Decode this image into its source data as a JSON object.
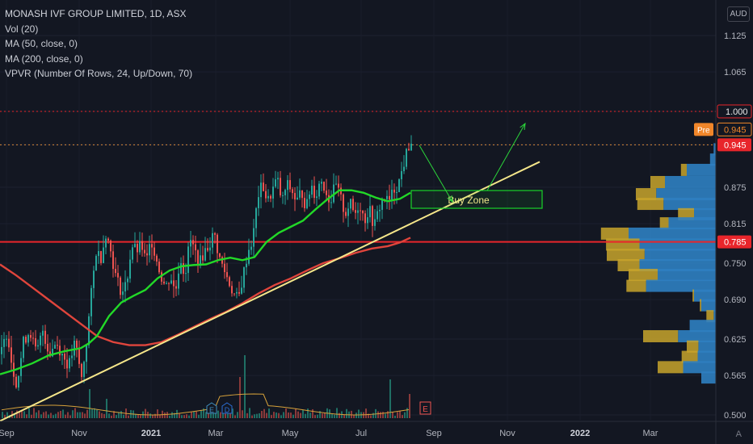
{
  "header": {
    "symbol_line": "MONASH IVF GROUP LIMITED, 1D, ASX",
    "indicators": [
      "Vol (20)",
      "MA (50, close, 0)",
      "MA (200, close, 0)",
      "VPVR (Number Of Rows, 24, Up/Down, 70)"
    ],
    "currency": "AUD",
    "auto_mark": "A"
  },
  "colors": {
    "background": "#131722",
    "up_candle": "#26a69a",
    "down_candle": "#ef5350",
    "ma50": "#22d928",
    "ma200": "#e0453c",
    "trendline": "#f5e68a",
    "horizontal_level": "#e8252b",
    "buy_zone_border": "#18d32a",
    "arrows": "#2bd63a",
    "vp_up": "#2f7fc1",
    "vp_down": "#c8a42c"
  },
  "chart_data": {
    "type": "candlestick",
    "y_axis": {
      "ticks": [
        "1.125",
        "1.065",
        "1.000",
        "0.945",
        "0.875",
        "0.815",
        "0.785",
        "0.750",
        "0.690",
        "0.625",
        "0.565",
        "0.500"
      ],
      "range": [
        0.495,
        1.16
      ]
    },
    "x_axis": {
      "ticks": [
        {
          "label": "Sep",
          "bold": false
        },
        {
          "label": "Nov",
          "bold": false
        },
        {
          "label": "2021",
          "bold": true
        },
        {
          "label": "Mar",
          "bold": false
        },
        {
          "label": "May",
          "bold": false
        },
        {
          "label": "Jul",
          "bold": false
        },
        {
          "label": "Sep",
          "bold": false
        },
        {
          "label": "Nov",
          "bold": false
        },
        {
          "label": "2022",
          "bold": true
        },
        {
          "label": "Mar",
          "bold": false
        }
      ]
    },
    "price_markers": [
      {
        "label": "1.000",
        "value": 1.0,
        "style": "outline-red"
      },
      {
        "label": "0.945",
        "value": 0.945,
        "style": "pre-orange",
        "prefix": "Pre"
      },
      {
        "label": "0.945",
        "value": 0.945,
        "style": "red-fill"
      },
      {
        "label": "0.785",
        "value": 0.785,
        "style": "red-fill"
      }
    ],
    "horizontal_lines": [
      {
        "value": 1.0,
        "style": "dotted",
        "color": "#e8252b"
      },
      {
        "value": 0.945,
        "style": "dotted",
        "color": "#d98a3a"
      },
      {
        "value": 0.785,
        "style": "solid",
        "color": "#e8252b"
      }
    ],
    "price_path": [
      [
        0,
        0.6
      ],
      [
        8,
        0.64
      ],
      [
        14,
        0.58
      ],
      [
        20,
        0.55
      ],
      [
        28,
        0.62
      ],
      [
        36,
        0.64
      ],
      [
        44,
        0.6
      ],
      [
        52,
        0.64
      ],
      [
        60,
        0.6
      ],
      [
        68,
        0.62
      ],
      [
        76,
        0.6
      ],
      [
        84,
        0.58
      ],
      [
        92,
        0.62
      ],
      [
        100,
        0.56
      ],
      [
        106,
        0.62
      ],
      [
        112,
        0.7
      ],
      [
        118,
        0.77
      ],
      [
        124,
        0.76
      ],
      [
        130,
        0.8
      ],
      [
        136,
        0.77
      ],
      [
        142,
        0.73
      ],
      [
        150,
        0.7
      ],
      [
        156,
        0.72
      ],
      [
        162,
        0.78
      ],
      [
        168,
        0.77
      ],
      [
        174,
        0.78
      ],
      [
        180,
        0.75
      ],
      [
        186,
        0.79
      ],
      [
        192,
        0.76
      ],
      [
        198,
        0.73
      ],
      [
        204,
        0.71
      ],
      [
        210,
        0.73
      ],
      [
        216,
        0.7
      ],
      [
        222,
        0.76
      ],
      [
        228,
        0.73
      ],
      [
        234,
        0.79
      ],
      [
        240,
        0.77
      ],
      [
        246,
        0.75
      ],
      [
        252,
        0.77
      ],
      [
        258,
        0.78
      ],
      [
        264,
        0.8
      ],
      [
        270,
        0.76
      ],
      [
        276,
        0.74
      ],
      [
        282,
        0.72
      ],
      [
        288,
        0.7
      ],
      [
        294,
        0.69
      ],
      [
        300,
        0.73
      ],
      [
        306,
        0.77
      ],
      [
        312,
        0.79
      ],
      [
        318,
        0.86
      ],
      [
        324,
        0.88
      ],
      [
        330,
        0.85
      ],
      [
        336,
        0.87
      ],
      [
        342,
        0.89
      ],
      [
        348,
        0.85
      ],
      [
        354,
        0.88
      ],
      [
        360,
        0.87
      ],
      [
        366,
        0.85
      ],
      [
        372,
        0.87
      ],
      [
        378,
        0.84
      ],
      [
        384,
        0.88
      ],
      [
        390,
        0.86
      ],
      [
        396,
        0.89
      ],
      [
        402,
        0.87
      ],
      [
        408,
        0.85
      ],
      [
        414,
        0.88
      ],
      [
        420,
        0.86
      ],
      [
        426,
        0.83
      ],
      [
        432,
        0.85
      ],
      [
        438,
        0.83
      ],
      [
        444,
        0.85
      ],
      [
        450,
        0.82
      ],
      [
        456,
        0.84
      ],
      [
        462,
        0.81
      ],
      [
        468,
        0.84
      ],
      [
        474,
        0.86
      ],
      [
        480,
        0.85
      ],
      [
        486,
        0.87
      ],
      [
        492,
        0.88
      ],
      [
        498,
        0.91
      ],
      [
        504,
        0.94
      ],
      [
        510,
        0.955
      ]
    ],
    "ma50_path": [
      [
        0,
        0.567
      ],
      [
        20,
        0.575
      ],
      [
        40,
        0.585
      ],
      [
        60,
        0.598
      ],
      [
        80,
        0.605
      ],
      [
        100,
        0.61
      ],
      [
        110,
        0.618
      ],
      [
        120,
        0.63
      ],
      [
        135,
        0.663
      ],
      [
        150,
        0.685
      ],
      [
        165,
        0.696
      ],
      [
        180,
        0.706
      ],
      [
        195,
        0.725
      ],
      [
        210,
        0.738
      ],
      [
        225,
        0.745
      ],
      [
        240,
        0.747
      ],
      [
        255,
        0.748
      ],
      [
        270,
        0.755
      ],
      [
        285,
        0.759
      ],
      [
        300,
        0.755
      ],
      [
        315,
        0.76
      ],
      [
        330,
        0.785
      ],
      [
        345,
        0.8
      ],
      [
        360,
        0.81
      ],
      [
        375,
        0.82
      ],
      [
        390,
        0.838
      ],
      [
        405,
        0.855
      ],
      [
        420,
        0.87
      ],
      [
        435,
        0.87
      ],
      [
        450,
        0.866
      ],
      [
        465,
        0.858
      ],
      [
        480,
        0.852
      ],
      [
        495,
        0.856
      ],
      [
        508,
        0.866
      ]
    ],
    "ma200_path": [
      [
        0,
        0.748
      ],
      [
        20,
        0.73
      ],
      [
        40,
        0.71
      ],
      [
        60,
        0.69
      ],
      [
        80,
        0.67
      ],
      [
        100,
        0.65
      ],
      [
        120,
        0.63
      ],
      [
        140,
        0.62
      ],
      [
        160,
        0.615
      ],
      [
        180,
        0.615
      ],
      [
        200,
        0.62
      ],
      [
        220,
        0.632
      ],
      [
        240,
        0.645
      ],
      [
        260,
        0.658
      ],
      [
        280,
        0.67
      ],
      [
        300,
        0.684
      ],
      [
        320,
        0.7
      ],
      [
        340,
        0.714
      ],
      [
        360,
        0.725
      ],
      [
        380,
        0.738
      ],
      [
        400,
        0.75
      ],
      [
        420,
        0.758
      ],
      [
        440,
        0.767
      ],
      [
        460,
        0.774
      ],
      [
        480,
        0.778
      ],
      [
        495,
        0.784
      ],
      [
        508,
        0.792
      ]
    ],
    "trendline": [
      [
        0,
        0.49
      ],
      [
        668,
        0.917
      ]
    ],
    "volume": {
      "unit": "relative",
      "peaks": [
        [
          302,
          0.26
        ],
        [
          296,
          0.17
        ],
        [
          481,
          0.16
        ],
        [
          505,
          0.1
        ],
        [
          110,
          0.12
        ],
        [
          132,
          0.08
        ]
      ]
    },
    "volume_profile": [
      {
        "price": 0.937,
        "up": 3,
        "down": 0
      },
      {
        "price": 0.92,
        "up": 8,
        "down": 0
      },
      {
        "price": 0.903,
        "up": 40,
        "down": 8
      },
      {
        "price": 0.883,
        "up": 70,
        "down": 20
      },
      {
        "price": 0.863,
        "up": 82,
        "down": 28
      },
      {
        "price": 0.847,
        "up": 72,
        "down": 36
      },
      {
        "price": 0.83,
        "up": 30,
        "down": 22
      },
      {
        "price": 0.815,
        "up": 65,
        "down": 12
      },
      {
        "price": 0.798,
        "up": 120,
        "down": 38
      },
      {
        "price": 0.78,
        "up": 105,
        "down": 46
      },
      {
        "price": 0.763,
        "up": 98,
        "down": 52
      },
      {
        "price": 0.746,
        "up": 105,
        "down": 30
      },
      {
        "price": 0.73,
        "up": 80,
        "down": 40
      },
      {
        "price": 0.712,
        "up": 96,
        "down": 27
      },
      {
        "price": 0.696,
        "up": 30,
        "down": 2
      },
      {
        "price": 0.68,
        "up": 20,
        "down": 2
      },
      {
        "price": 0.662,
        "up": 3,
        "down": 10
      },
      {
        "price": 0.646,
        "up": 36,
        "down": 0
      },
      {
        "price": 0.629,
        "up": 52,
        "down": 48
      },
      {
        "price": 0.612,
        "up": 24,
        "down": 16
      },
      {
        "price": 0.595,
        "up": 25,
        "down": 22
      },
      {
        "price": 0.578,
        "up": 45,
        "down": 35
      },
      {
        "price": 0.561,
        "up": 20,
        "down": 0
      }
    ],
    "annotations": {
      "buy_zone_label": "Buy Zone",
      "earnings_mark": "E",
      "dividend_marks": [
        "E",
        "D"
      ]
    }
  }
}
